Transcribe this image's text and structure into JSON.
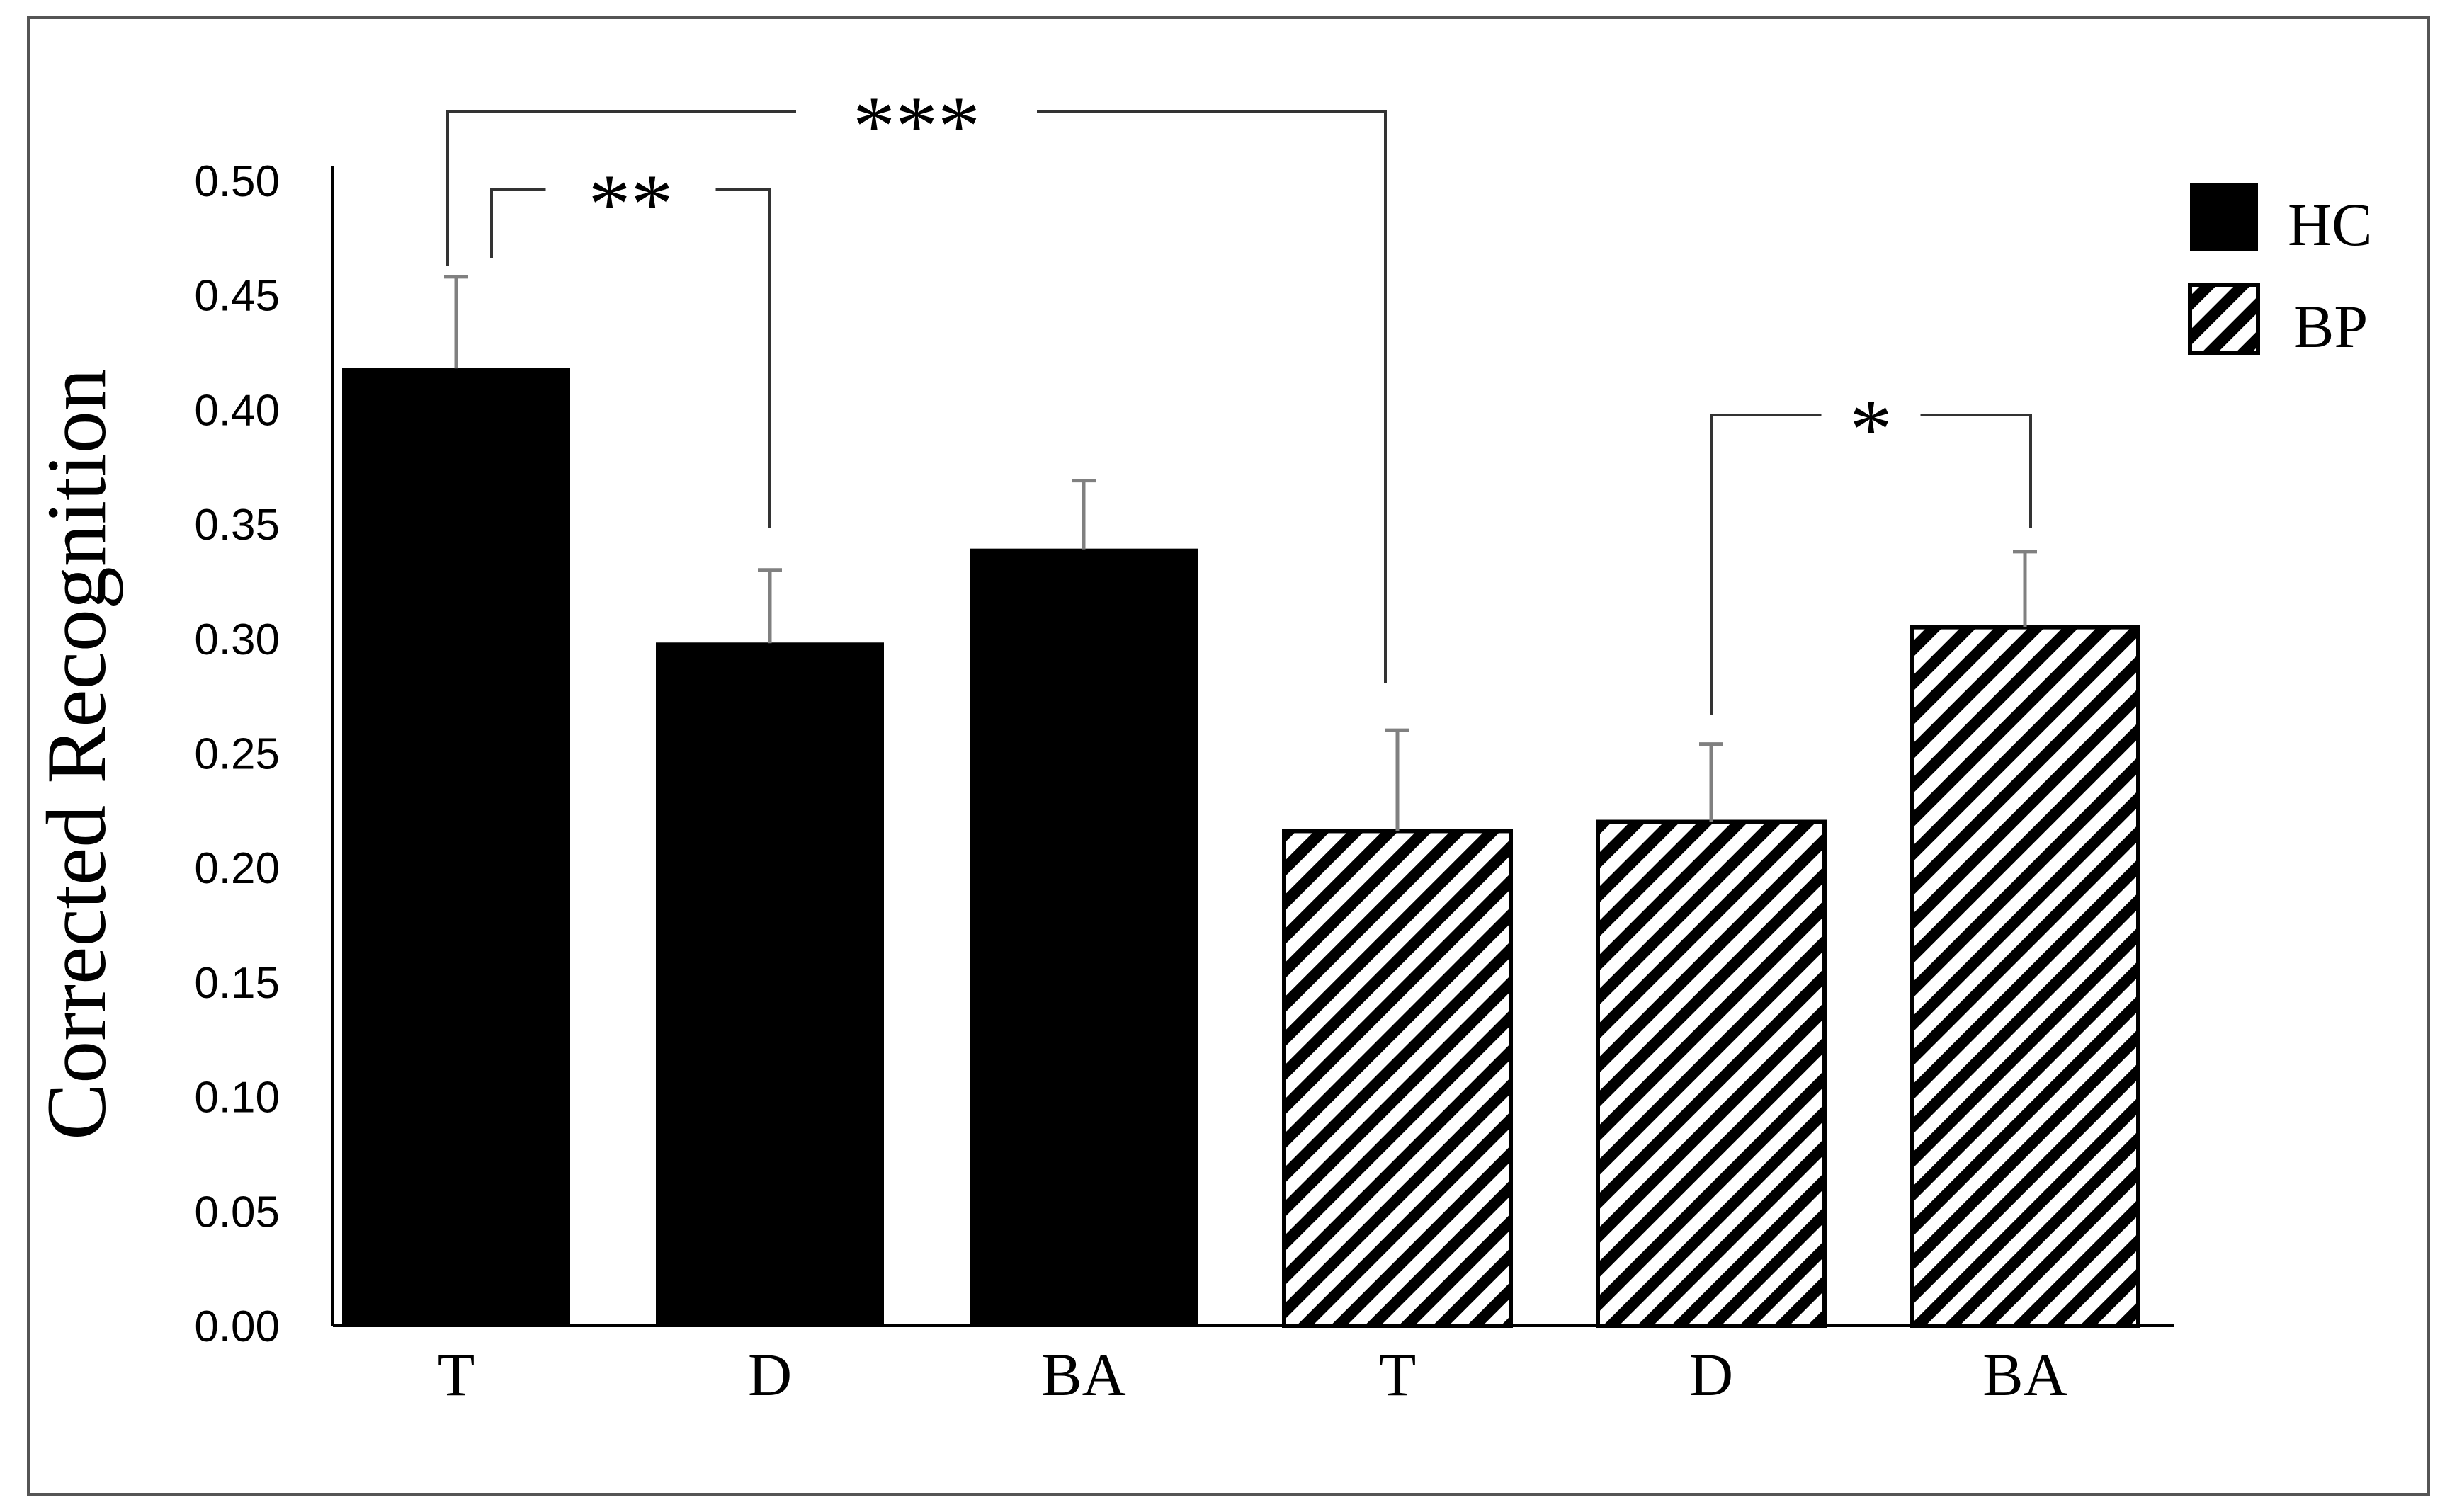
{
  "chart_data": {
    "type": "bar",
    "title": "",
    "xlabel": "",
    "ylabel": "Corrected Recognition",
    "ylim": [
      0,
      0.5
    ],
    "yticks": [
      "0.00",
      "0.05",
      "0.10",
      "0.15",
      "0.20",
      "0.25",
      "0.30",
      "0.35",
      "0.40",
      "0.45",
      "0.50"
    ],
    "grid": false,
    "legend_position": "top-right",
    "series": [
      {
        "name": "HC",
        "fill": "solid-black",
        "categories": [
          "T",
          "D",
          "BA"
        ],
        "values": [
          0.418,
          0.298,
          0.339
        ],
        "errors": [
          0.04,
          0.032,
          0.03
        ]
      },
      {
        "name": "BP",
        "fill": "diagonal-hatch",
        "categories": [
          "T",
          "D",
          "BA"
        ],
        "values": [
          0.216,
          0.22,
          0.305
        ],
        "errors": [
          0.044,
          0.034,
          0.033
        ]
      }
    ],
    "significance": [
      {
        "label": "**",
        "from_bar": 0,
        "to_bar": 1
      },
      {
        "label": "***",
        "from_bar": 0,
        "to_bar": 3
      },
      {
        "label": "*",
        "from_bar": 4,
        "to_bar": 5
      }
    ],
    "colors": {
      "bar_fill": "#000000",
      "error_bar": "#808080",
      "bracket": "#333333",
      "frame": "#555555"
    }
  }
}
